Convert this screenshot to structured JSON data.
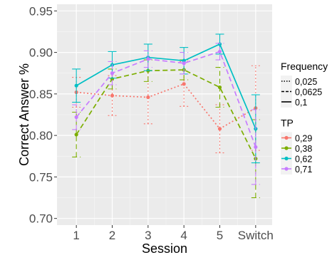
{
  "chart_data": {
    "type": "line",
    "xlabel": "Session",
    "ylabel": "Correct Answer %",
    "categories": [
      "1",
      "2",
      "3",
      "4",
      "5",
      "Switch"
    ],
    "ylim": [
      0.692,
      0.958
    ],
    "yticks": [
      0.7,
      0.75,
      0.8,
      0.85,
      0.9,
      0.95
    ],
    "ytick_labels": [
      "0.70",
      "0.75",
      "0.80",
      "0.85",
      "0.90",
      "0.95"
    ],
    "grid": true,
    "background": "#ebebeb",
    "legends": [
      {
        "title": "Frequency",
        "entries": [
          {
            "label": "0,025",
            "linetype": "dotted"
          },
          {
            "label": "0,0625",
            "linetype": "dashed"
          },
          {
            "label": "0,1",
            "linetype": "solid"
          }
        ]
      },
      {
        "title": "TP",
        "entries": [
          {
            "label": "0,29",
            "color": "#f8766d"
          },
          {
            "label": "0,38",
            "color": "#7cae00"
          },
          {
            "label": "0,62",
            "color": "#00bfc4"
          },
          {
            "label": "0,71",
            "color": "#c77cff"
          }
        ]
      }
    ],
    "series": [
      {
        "name": "0,29",
        "color": "#f8766d",
        "linetype": "dotted",
        "values": [
          0.852,
          0.848,
          0.846,
          0.862,
          0.808,
          0.833
        ],
        "err": [
          0.018,
          0.024,
          0.032,
          0.027,
          0.029,
          0.051
        ]
      },
      {
        "name": "0,38",
        "color": "#7cae00",
        "linetype": "dashed",
        "values": [
          0.801,
          0.868,
          0.878,
          0.879,
          0.858,
          0.772
        ],
        "err": [
          0.027,
          0.012,
          0.013,
          0.012,
          0.024,
          0.047
        ]
      },
      {
        "name": "0,62",
        "color": "#00bfc4",
        "linetype": "solid",
        "values": [
          0.86,
          0.885,
          0.894,
          0.89,
          0.91,
          0.808
        ],
        "err": [
          0.02,
          0.016,
          0.016,
          0.016,
          0.012,
          0.041
        ]
      },
      {
        "name": "0,71",
        "color": "#c77cff",
        "linetype": "dashed",
        "values": [
          0.822,
          0.875,
          0.892,
          0.887,
          0.901,
          0.786
        ],
        "err": [
          0.015,
          0.014,
          0.01,
          0.013,
          0.01,
          0.045
        ]
      }
    ]
  }
}
